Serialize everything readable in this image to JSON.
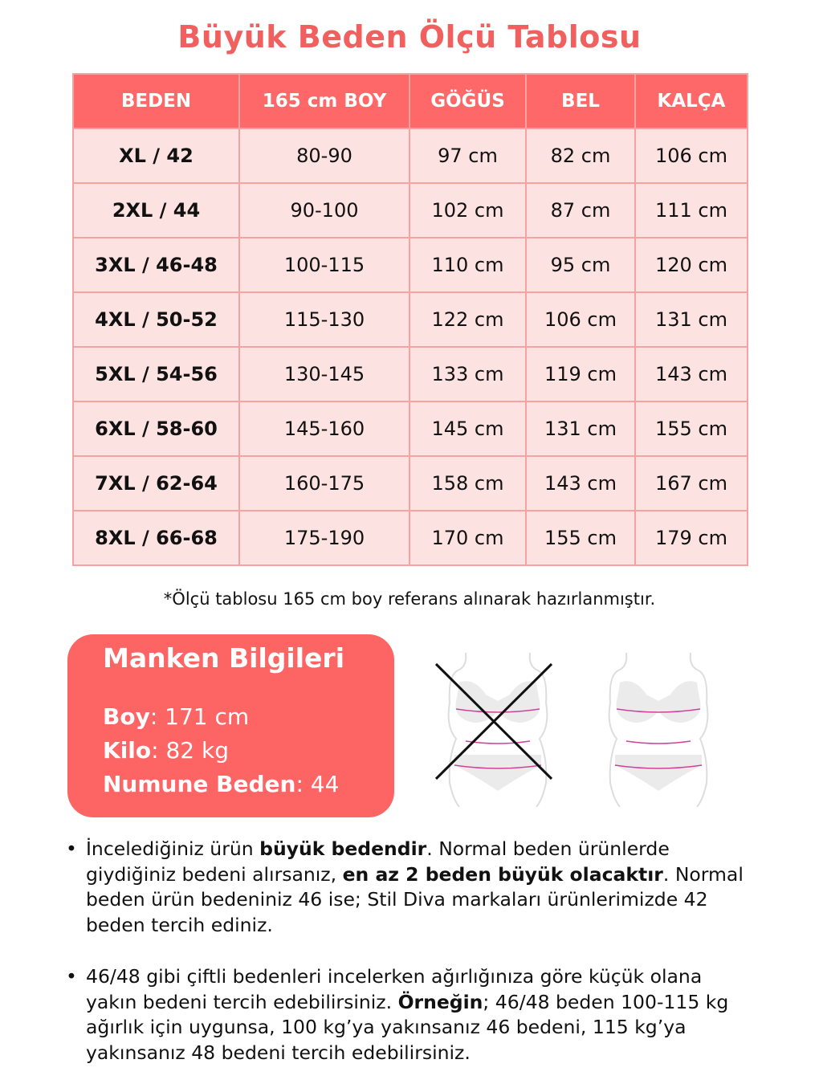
{
  "title": "Büyük Beden Ölçü Tablosu",
  "table": {
    "headers": [
      "BEDEN",
      "165 cm BOY",
      "GÖĞÜS",
      "BEL",
      "KALÇA"
    ],
    "rows": [
      [
        "XL / 42",
        "80-90",
        "97 cm",
        "82 cm",
        "106 cm"
      ],
      [
        "2XL / 44",
        "90-100",
        "102 cm",
        "87 cm",
        "111 cm"
      ],
      [
        "3XL / 46-48",
        "100-115",
        "110 cm",
        "95 cm",
        "120 cm"
      ],
      [
        "4XL / 50-52",
        "115-130",
        "122 cm",
        "106 cm",
        "131 cm"
      ],
      [
        "5XL / 54-56",
        "130-145",
        "133 cm",
        "119 cm",
        "143 cm"
      ],
      [
        "6XL / 58-60",
        "145-160",
        "145 cm",
        "131 cm",
        "155 cm"
      ],
      [
        "7XL / 62-64",
        "160-175",
        "158 cm",
        "143 cm",
        "167 cm"
      ],
      [
        "8XL / 66-68",
        "175-190",
        "170 cm",
        "155 cm",
        "179 cm"
      ]
    ]
  },
  "note": "*Ölçü tablosu 165 cm boy referans alınarak hazırlanmıştır.",
  "model": {
    "title": "Manken Bilgileri",
    "height_label": "Boy",
    "height_value": ": 171 cm",
    "weight_label": "Kilo",
    "weight_value": ": 82 kg",
    "size_label": "Numune Beden",
    "size_value": ": 44"
  },
  "illustrations": {
    "wrong": "body-measure-wrong-icon",
    "right": "body-measure-right-icon"
  },
  "bullets": [
    {
      "parts": [
        "İncelediğiniz ürün ",
        "büyük bedendir",
        ". Normal beden ürünlerde giydiğiniz bedeni alırsanız, ",
        "en az 2 beden büyük olacaktır",
        ". Normal beden ürün bedeniniz 46 ise; Stil Diva markaları ürünlerimizde 42 beden tercih ediniz."
      ]
    },
    {
      "parts": [
        "46/48 gibi çiftli bedenleri incelerken ağırlığınıza göre küçük olana yakın bedeni tercih edebilirsiniz. ",
        "Örneğin",
        "; 46/48 beden 100-115 kg ağırlık için uygunsa, 100 kg’ya yakınsanız 46 bedeni, 115 kg’ya yakınsanız 48 bedeni tercih edebilirsiniz."
      ]
    }
  ],
  "colors": {
    "accent": "#f0605e",
    "header": "#fe6868",
    "row": "#fde2e2",
    "border": "#f4a2a2"
  }
}
